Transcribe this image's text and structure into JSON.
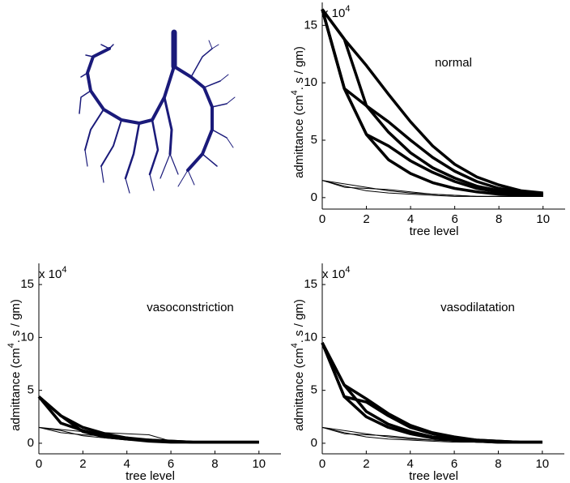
{
  "chart_data": [
    {
      "type": "line",
      "annotation": "normal",
      "multiplier": [
        "x 10",
        "4"
      ],
      "x_label": "tree level",
      "y_label": [
        "admittance (cm",
        "4",
        ". s / gm)"
      ],
      "x": [
        0,
        1,
        2,
        3,
        4,
        5,
        6,
        7,
        8,
        9,
        10
      ],
      "xlim": [
        0,
        11
      ],
      "xticks": [
        0,
        2,
        4,
        6,
        8,
        10
      ],
      "ylim": [
        -1,
        17
      ],
      "yticks": [
        0,
        5,
        10,
        15
      ],
      "series": [
        {
          "color": "#000000",
          "line_width": 3.5,
          "values": [
            16.4,
            13.8,
            11.5,
            9.0,
            6.6,
            4.5,
            2.9,
            1.8,
            1.1,
            0.6,
            0.4
          ]
        },
        {
          "color": "#000000",
          "line_width": 3.5,
          "values": [
            16.4,
            13.8,
            8.0,
            6.6,
            5.0,
            3.5,
            2.3,
            1.4,
            0.8,
            0.5,
            0.3
          ]
        },
        {
          "color": "#000000",
          "line_width": 3.5,
          "values": [
            16.4,
            9.5,
            8.0,
            5.7,
            3.9,
            2.6,
            1.7,
            1.0,
            0.6,
            0.4,
            0.3
          ]
        },
        {
          "color": "#000000",
          "line_width": 3.5,
          "values": [
            16.4,
            9.5,
            5.5,
            4.5,
            3.2,
            2.2,
            1.4,
            0.8,
            0.5,
            0.3,
            0.2
          ]
        },
        {
          "color": "#000000",
          "line_width": 3.5,
          "values": [
            16.4,
            9.5,
            5.5,
            3.3,
            2.1,
            1.3,
            0.8,
            0.5,
            0.3,
            0.2,
            0.2
          ]
        },
        {
          "color": "#000000",
          "line_width": 1,
          "values": [
            1.5,
            1.2,
            0.9,
            0.6,
            0.4,
            0.3,
            0.2,
            0.1,
            0.1,
            0.1,
            0.1
          ]
        },
        {
          "color": "#000000",
          "line_width": 1,
          "values": [
            1.5,
            1.0,
            0.6,
            0.4,
            0.3,
            0.2,
            0.1,
            0.1,
            0.1,
            0.1,
            0.1
          ]
        },
        {
          "color": "#000000",
          "line_width": 1,
          "values": [
            1.5,
            0.9,
            0.8,
            0.7,
            0.5,
            0.3,
            0.2,
            0.1,
            0.1,
            0.1,
            0.1
          ]
        }
      ]
    },
    {
      "type": "line",
      "annotation": "vasoconstriction",
      "multiplier": [
        "x 10",
        "4"
      ],
      "x_label": "tree level",
      "y_label": [
        "admittance (cm",
        "4",
        ". s / gm)"
      ],
      "x": [
        0,
        1,
        2,
        3,
        4,
        5,
        6,
        7,
        8,
        9,
        10
      ],
      "xlim": [
        0,
        11
      ],
      "xticks": [
        0,
        2,
        4,
        6,
        8,
        10
      ],
      "ylim": [
        -1,
        17
      ],
      "yticks": [
        0,
        5,
        10,
        15
      ],
      "series": [
        {
          "color": "#000000",
          "line_width": 3.5,
          "values": [
            4.4,
            2.6,
            1.5,
            0.9,
            0.5,
            0.3,
            0.2,
            0.1,
            0.1,
            0.1,
            0.1
          ]
        },
        {
          "color": "#000000",
          "line_width": 3.5,
          "values": [
            4.4,
            1.9,
            1.2,
            0.7,
            0.4,
            0.3,
            0.2,
            0.1,
            0.1,
            0.1,
            0.1
          ]
        },
        {
          "color": "#000000",
          "line_width": 3.5,
          "values": [
            4.4,
            2.6,
            1.1,
            0.6,
            0.4,
            0.2,
            0.1,
            0.1,
            0.1,
            0.1,
            0.1
          ]
        },
        {
          "color": "#000000",
          "line_width": 1,
          "values": [
            1.5,
            1.3,
            1.1,
            1.0,
            0.9,
            0.8,
            0.2,
            0.1,
            0.1,
            0.1,
            0.1
          ]
        },
        {
          "color": "#000000",
          "line_width": 1,
          "values": [
            1.5,
            1.0,
            0.8,
            0.7,
            0.6,
            0.2,
            0.1,
            0.1,
            0.1,
            0.1,
            0.1
          ]
        },
        {
          "color": "#000000",
          "line_width": 1,
          "values": [
            1.5,
            1.2,
            0.7,
            0.5,
            0.3,
            0.2,
            0.1,
            0.1,
            0.1,
            0.1,
            0.1
          ]
        }
      ]
    },
    {
      "type": "line",
      "annotation": "vasodilatation",
      "multiplier": [
        "x 10",
        "4"
      ],
      "x_label": "tree level",
      "y_label": [
        "admittance (cm",
        "4",
        ". s / gm)"
      ],
      "x": [
        0,
        1,
        2,
        3,
        4,
        5,
        6,
        7,
        8,
        9,
        10
      ],
      "xlim": [
        0,
        11
      ],
      "xticks": [
        0,
        2,
        4,
        6,
        8,
        10
      ],
      "ylim": [
        -1,
        17
      ],
      "yticks": [
        0,
        5,
        10,
        15
      ],
      "series": [
        {
          "color": "#000000",
          "line_width": 3.5,
          "values": [
            9.5,
            4.4,
            3.9,
            2.6,
            1.5,
            0.9,
            0.5,
            0.3,
            0.2,
            0.1,
            0.1
          ]
        },
        {
          "color": "#000000",
          "line_width": 3.5,
          "values": [
            9.5,
            5.5,
            4.2,
            2.8,
            1.7,
            1.0,
            0.6,
            0.3,
            0.2,
            0.1,
            0.1
          ]
        },
        {
          "color": "#000000",
          "line_width": 3.5,
          "values": [
            9.5,
            4.4,
            2.5,
            1.5,
            0.9,
            0.5,
            0.3,
            0.2,
            0.1,
            0.1,
            0.1
          ]
        },
        {
          "color": "#000000",
          "line_width": 3.5,
          "values": [
            9.5,
            5.5,
            3.0,
            1.8,
            1.1,
            0.6,
            0.4,
            0.2,
            0.1,
            0.1,
            0.1
          ]
        },
        {
          "color": "#000000",
          "line_width": 1,
          "values": [
            1.5,
            1.2,
            0.9,
            0.6,
            0.4,
            0.3,
            0.2,
            0.1,
            0.1,
            0.1,
            0.1
          ]
        },
        {
          "color": "#000000",
          "line_width": 1,
          "values": [
            1.5,
            1.0,
            0.6,
            0.4,
            0.3,
            0.2,
            0.1,
            0.1,
            0.1,
            0.1,
            0.1
          ]
        },
        {
          "color": "#000000",
          "line_width": 1,
          "values": [
            1.5,
            0.9,
            0.8,
            0.7,
            0.5,
            0.3,
            0.2,
            0.1,
            0.1,
            0.1,
            0.1
          ]
        }
      ]
    }
  ]
}
